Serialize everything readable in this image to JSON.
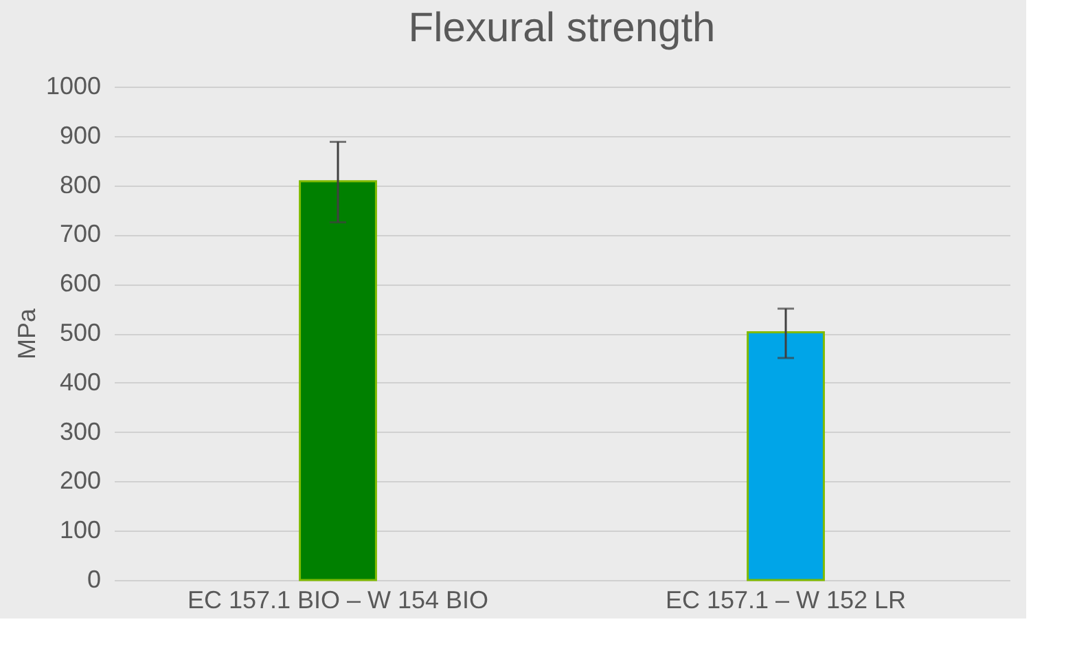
{
  "chart_data": {
    "type": "bar",
    "title": "Flexural strength",
    "ylabel": "MPa",
    "categories": [
      "EC 157.1 BIO – W 154 BIO",
      "EC 157.1 – W 152 LR"
    ],
    "values": [
      808,
      502
    ],
    "colors": [
      "#008000",
      "#00a5e8"
    ],
    "errors": [
      [
        725,
        888
      ],
      [
        450,
        550
      ]
    ],
    "ylim": [
      0,
      1000
    ],
    "yticks": [
      0,
      100,
      200,
      300,
      400,
      500,
      600,
      700,
      800,
      900,
      1000
    ],
    "grid": "y"
  }
}
